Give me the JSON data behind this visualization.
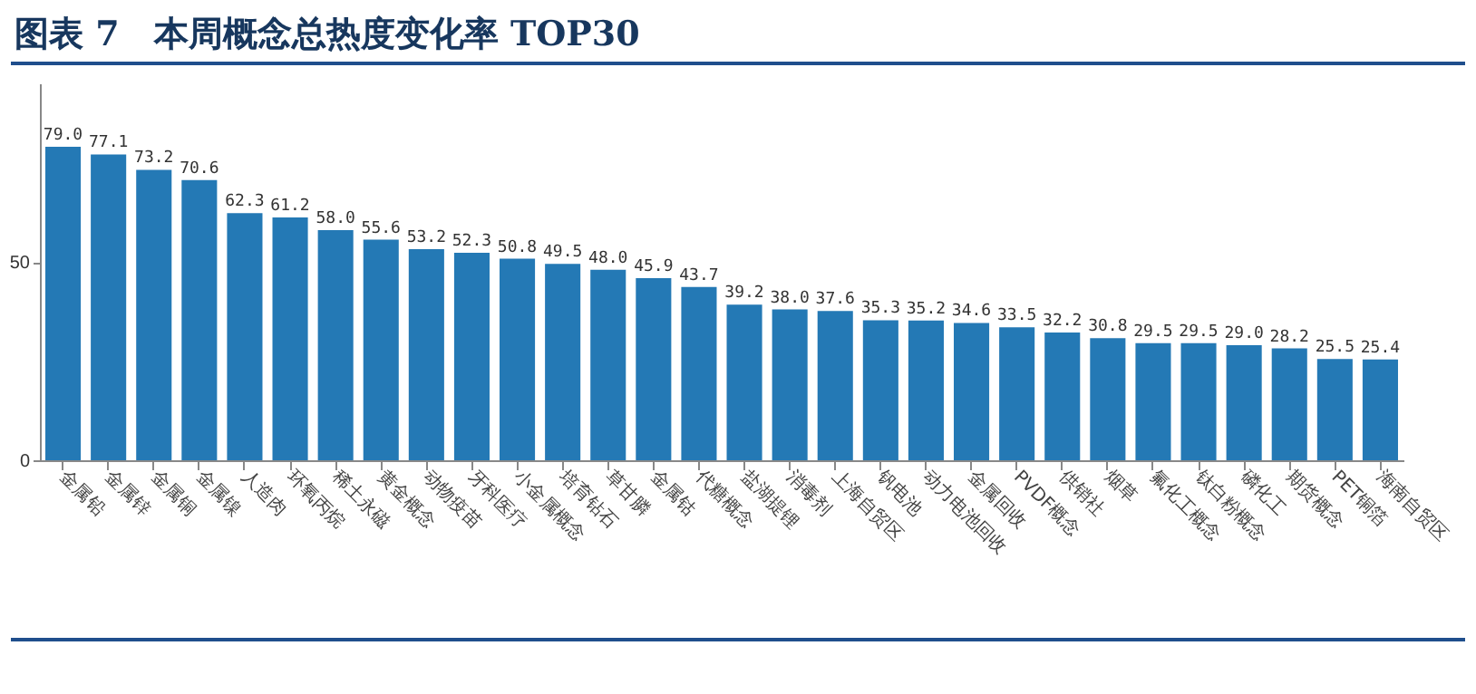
{
  "chart_data": {
    "type": "bar",
    "title": "图表 7　本周概念总热度变化率 TOP30",
    "categories": [
      "金属铅",
      "金属锌",
      "金属铜",
      "金属镍",
      "人造肉",
      "环氧丙烷",
      "稀土永磁",
      "黄金概念",
      "动物疫苗",
      "牙科医疗",
      "小金属概念",
      "培育钻石",
      "草甘膦",
      "金属钴",
      "代糖概念",
      "盐湖提锂",
      "消毒剂",
      "上海自贸区",
      "钒电池",
      "动力电池回收",
      "金属回收",
      "PVDF概念",
      "供销社",
      "烟草",
      "氟化工概念",
      "钛白粉概念",
      "磷化工",
      "期货概念",
      "PET铜箔",
      "海南自贸区"
    ],
    "values": [
      79.0,
      77.1,
      73.2,
      70.6,
      62.3,
      61.2,
      58.0,
      55.6,
      53.2,
      52.3,
      50.8,
      49.5,
      48.0,
      45.9,
      43.7,
      39.2,
      38.0,
      37.6,
      35.3,
      35.2,
      34.6,
      33.5,
      32.2,
      30.8,
      29.5,
      29.5,
      29.0,
      28.2,
      25.5,
      25.4
    ],
    "value_labels": [
      "79.0",
      "77.1",
      "73.2",
      "70.6",
      "62.3",
      "61.2",
      "58.0",
      "55.6",
      "53.2",
      "52.3",
      "50.8",
      "49.5",
      "48.0",
      "45.9",
      "43.7",
      "39.2",
      "38.0",
      "37.6",
      "35.3",
      "35.2",
      "34.6",
      "33.5",
      "32.2",
      "30.8",
      "29.5",
      "29.5",
      "29.0",
      "28.2",
      "25.5",
      "25.4"
    ],
    "color": "#2479b5",
    "ylim": [
      0,
      95
    ],
    "yticks": [
      0,
      50
    ],
    "grid": false
  }
}
